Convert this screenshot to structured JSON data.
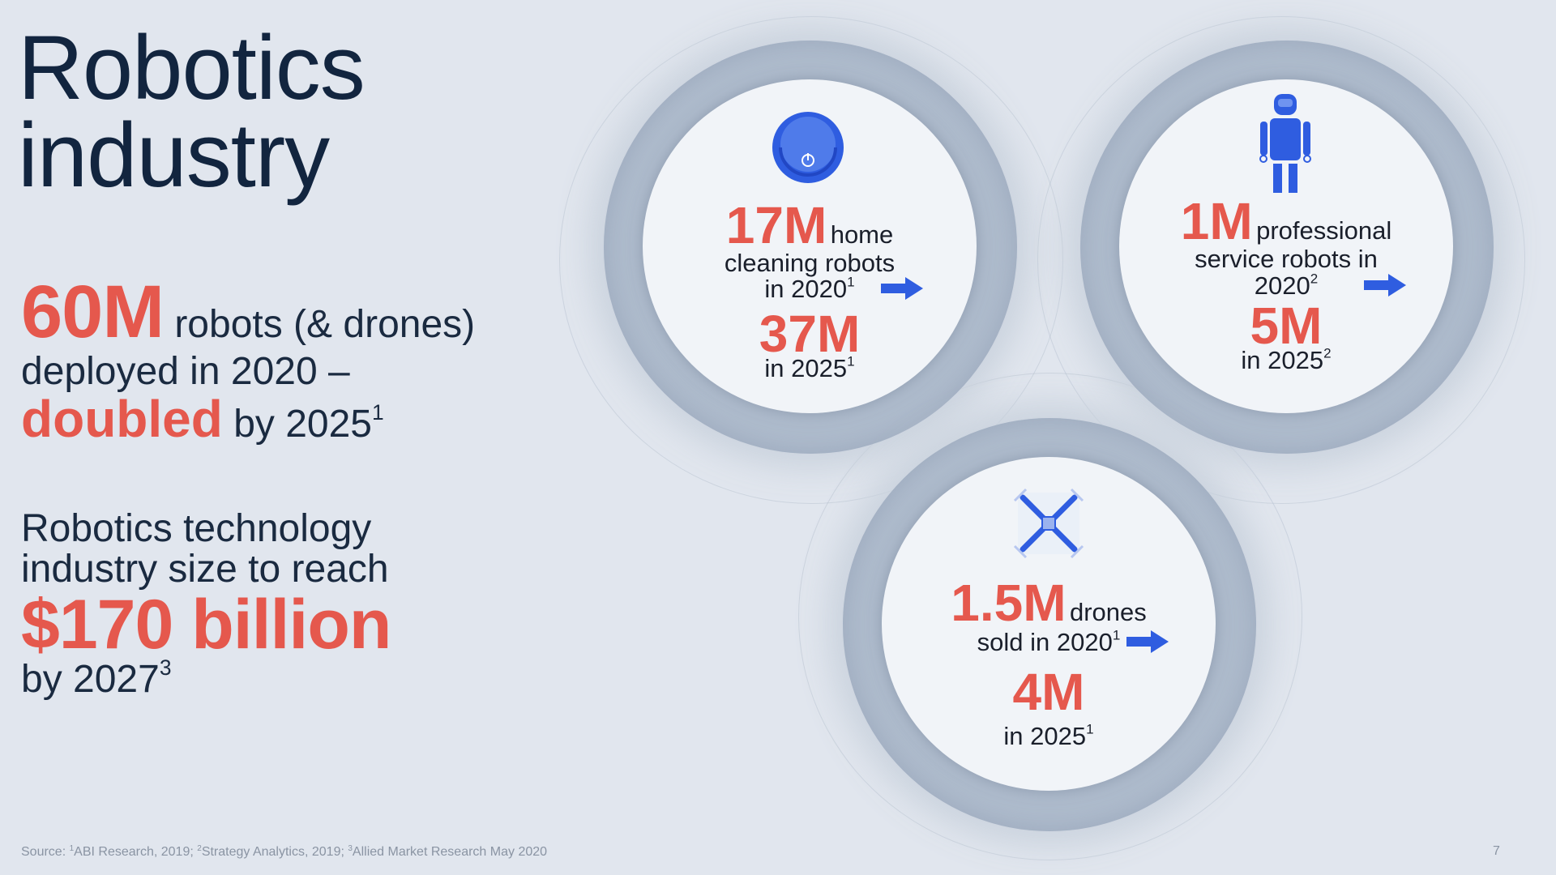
{
  "title": {
    "line1": "Robotics",
    "line2": "industry"
  },
  "stat_robots": {
    "value": "60M",
    "text1": "robots (& drones)",
    "text2": "deployed in 2020 –",
    "emphasis": "doubled",
    "text3": "by 2025",
    "footnote": "1"
  },
  "stat_industry": {
    "line1": "Robotics technology",
    "line2": "industry size to reach",
    "value": "$170 billion",
    "line3": "by 2027",
    "footnote": "3"
  },
  "circles": {
    "home_cleaning": {
      "icon": "robot-vacuum-icon",
      "value_2020": "17M",
      "label1": "home",
      "label2": "cleaning robots",
      "label3": "in 2020",
      "fn1": "1",
      "value_2025": "37M",
      "label4": "in 2025",
      "fn2": "1"
    },
    "professional_service": {
      "icon": "robot-figure-icon",
      "value_2020": "1M",
      "label1": "professional",
      "label2": "service robots in",
      "label3": "2020",
      "fn1": "2",
      "value_2025": "5M",
      "label4": "in 2025",
      "fn2": "2"
    },
    "drones": {
      "icon": "drone-icon",
      "value_2020": "1.5M",
      "label1": "drones",
      "label2": "sold in 2020",
      "fn1": "1",
      "value_2025": "4M",
      "label4": "in 2025",
      "fn2": "1"
    }
  },
  "source": {
    "prefix": "Source: ",
    "fn1": "1",
    "s1": "ABI Research, 2019; ",
    "fn2": "2",
    "s2": "Strategy Analytics, 2019; ",
    "fn3": "3",
    "s3": "Allied Market Research May 2020"
  },
  "page_number": "7",
  "colors": {
    "accent_red": "#e5584d",
    "accent_blue": "#2f5de0",
    "title_navy": "#12253f",
    "background": "#e1e6ee"
  }
}
